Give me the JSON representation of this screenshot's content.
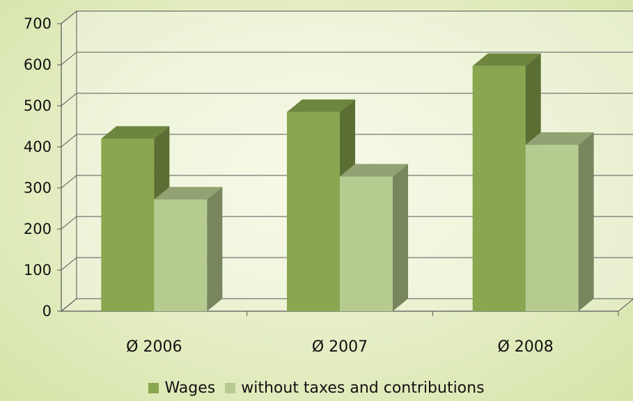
{
  "chart_data": {
    "type": "bar",
    "categories": [
      "Ø 2006",
      "Ø 2007",
      "Ø 2008"
    ],
    "series": [
      {
        "name": "Wages",
        "values": [
          420,
          485,
          597
        ],
        "color": "#8aa64e"
      },
      {
        "name": "without taxes and contributions",
        "values": [
          272,
          328,
          405
        ],
        "color": "#b6cb8f"
      }
    ],
    "y_ticks": [
      "0",
      "100",
      "200",
      "300",
      "400",
      "500",
      "600",
      "700"
    ],
    "ylim": [
      0,
      700
    ],
    "grid": true,
    "legend_position": "bottom",
    "style": "3d-column"
  }
}
